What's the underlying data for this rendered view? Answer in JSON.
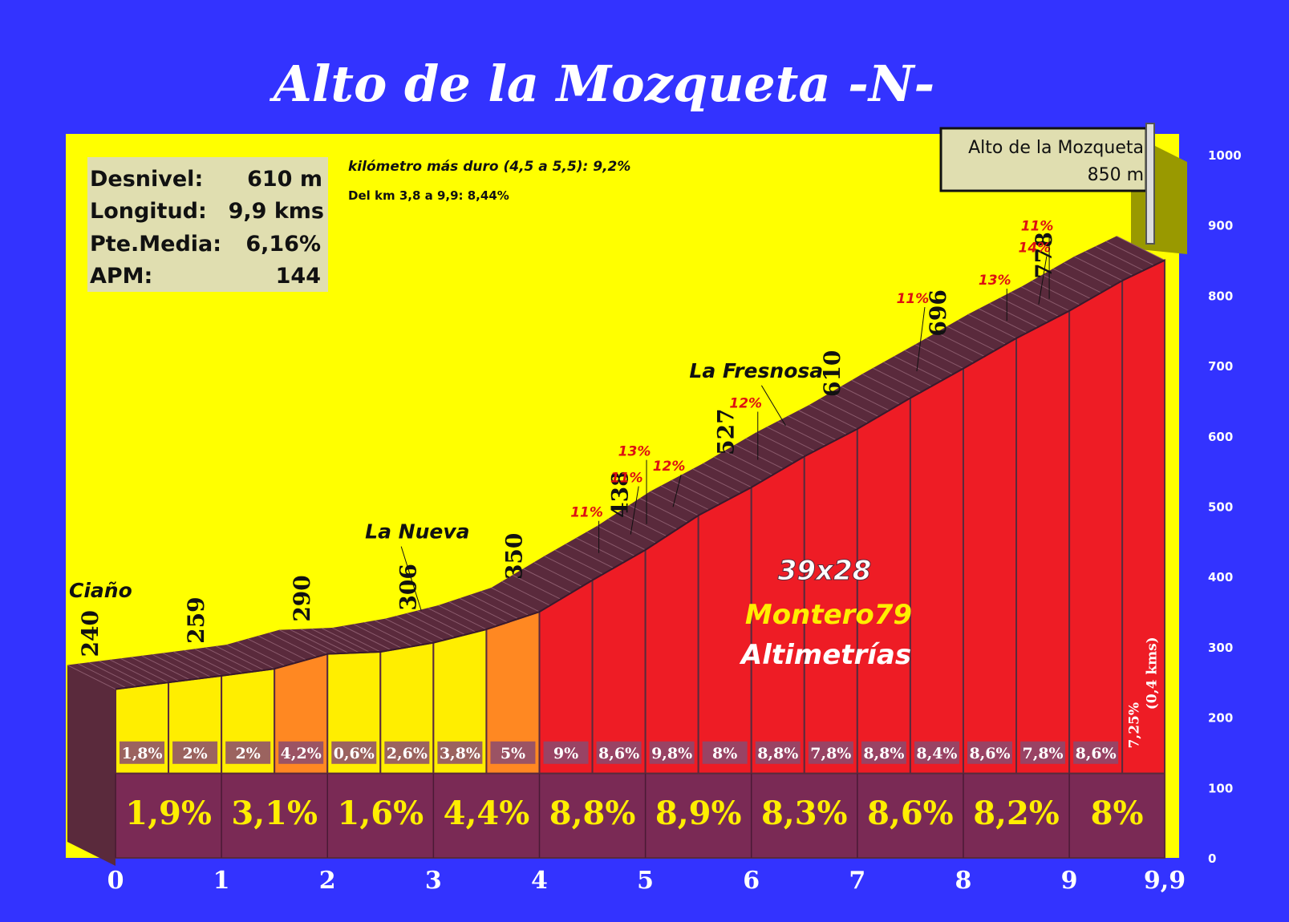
{
  "chart_data": {
    "type": "area",
    "title": "Alto de la Mozqueta -N-",
    "x_ticks": [
      "0",
      "1",
      "2",
      "3",
      "4",
      "5",
      "6",
      "7",
      "8",
      "9",
      "9,9"
    ],
    "xlim": [
      0,
      9.9
    ],
    "y_ticks": [
      "0",
      "100",
      "200",
      "300",
      "400",
      "500",
      "600",
      "700",
      "800",
      "900",
      "1000"
    ],
    "ylim": [
      0,
      1000
    ],
    "profile": [
      {
        "x": 0,
        "y": 240
      },
      {
        "x": 0.5,
        "y": 249.5
      },
      {
        "x": 1,
        "y": 259
      },
      {
        "x": 1.5,
        "y": 269
      },
      {
        "x": 2,
        "y": 290
      },
      {
        "x": 2.5,
        "y": 293
      },
      {
        "x": 3,
        "y": 306
      },
      {
        "x": 3.5,
        "y": 325
      },
      {
        "x": 4,
        "y": 350
      },
      {
        "x": 4.5,
        "y": 395
      },
      {
        "x": 5,
        "y": 438
      },
      {
        "x": 5.5,
        "y": 487
      },
      {
        "x": 6,
        "y": 527
      },
      {
        "x": 6.5,
        "y": 571
      },
      {
        "x": 7,
        "y": 610
      },
      {
        "x": 7.5,
        "y": 654
      },
      {
        "x": 8,
        "y": 696
      },
      {
        "x": 8.5,
        "y": 739
      },
      {
        "x": 9,
        "y": 778
      },
      {
        "x": 9.5,
        "y": 821
      },
      {
        "x": 9.9,
        "y": 850
      }
    ],
    "segments": [
      {
        "start": 0,
        "end": 0.5,
        "label": "1,8%",
        "color": "#ffee00"
      },
      {
        "start": 0.5,
        "end": 1,
        "label": "2%",
        "color": "#ffee00"
      },
      {
        "start": 1,
        "end": 1.5,
        "label": "2%",
        "color": "#ffee00"
      },
      {
        "start": 1.5,
        "end": 2,
        "label": "4,2%",
        "color": "#ff8822"
      },
      {
        "start": 2,
        "end": 2.5,
        "label": "0,6%",
        "color": "#ffee00"
      },
      {
        "start": 2.5,
        "end": 3,
        "label": "2,6%",
        "color": "#ffee00"
      },
      {
        "start": 3,
        "end": 3.5,
        "label": "3,8%",
        "color": "#ffee00"
      },
      {
        "start": 3.5,
        "end": 4,
        "label": "5%",
        "color": "#ff8822"
      },
      {
        "start": 4,
        "end": 4.5,
        "label": "9%",
        "color": "#ee1c25"
      },
      {
        "start": 4.5,
        "end": 5,
        "label": "8,6%",
        "color": "#ee1c25"
      },
      {
        "start": 5,
        "end": 5.5,
        "label": "9,8%",
        "color": "#ee1c25"
      },
      {
        "start": 5.5,
        "end": 6,
        "label": "8%",
        "color": "#ee1c25"
      },
      {
        "start": 6,
        "end": 6.5,
        "label": "8,8%",
        "color": "#ee1c25"
      },
      {
        "start": 6.5,
        "end": 7,
        "label": "7,8%",
        "color": "#ee1c25"
      },
      {
        "start": 7,
        "end": 7.5,
        "label": "8,8%",
        "color": "#ee1c25"
      },
      {
        "start": 7.5,
        "end": 8,
        "label": "8,4%",
        "color": "#ee1c25"
      },
      {
        "start": 8,
        "end": 8.5,
        "label": "8,6%",
        "color": "#ee1c25"
      },
      {
        "start": 8.5,
        "end": 9,
        "label": "7,8%",
        "color": "#ee1c25"
      },
      {
        "start": 9,
        "end": 9.5,
        "label": "8,6%",
        "color": "#ee1c25"
      },
      {
        "start": 9.5,
        "end": 9.9,
        "label": "7,25%",
        "label2": "(0,4 kms)",
        "color": "#ee1c25"
      }
    ],
    "km_gradients": [
      {
        "start": 0,
        "end": 1,
        "label": "1,9%"
      },
      {
        "start": 1,
        "end": 2,
        "label": "3,1%"
      },
      {
        "start": 2,
        "end": 3,
        "label": "1,6%"
      },
      {
        "start": 3,
        "end": 4,
        "label": "4,4%"
      },
      {
        "start": 4,
        "end": 5,
        "label": "8,8%"
      },
      {
        "start": 5,
        "end": 6,
        "label": "8,9%"
      },
      {
        "start": 6,
        "end": 7,
        "label": "8,3%"
      },
      {
        "start": 7,
        "end": 8,
        "label": "8,6%"
      },
      {
        "start": 8,
        "end": 9,
        "label": "8,2%"
      },
      {
        "start": 9,
        "end": 9.9,
        "label": "8%"
      }
    ],
    "altitude_labels": [
      {
        "x": 0,
        "y": 240,
        "label": "240"
      },
      {
        "x": 1,
        "y": 259,
        "label": "259"
      },
      {
        "x": 2,
        "y": 290,
        "label": "290"
      },
      {
        "x": 3,
        "y": 306,
        "label": "306"
      },
      {
        "x": 4,
        "y": 350,
        "label": "350"
      },
      {
        "x": 5,
        "y": 438,
        "label": "438"
      },
      {
        "x": 6,
        "y": 527,
        "label": "527"
      },
      {
        "x": 7,
        "y": 610,
        "label": "610"
      },
      {
        "x": 8,
        "y": 696,
        "label": "696"
      },
      {
        "x": 9,
        "y": 778,
        "label": "778"
      }
    ],
    "steep_labels": [
      {
        "x": 4.75,
        "label": "11%"
      },
      {
        "x": 5.05,
        "label": "11%"
      },
      {
        "x": 5.2,
        "label": "13%"
      },
      {
        "x": 5.45,
        "label": "12%"
      },
      {
        "x": 6.25,
        "label": "12%"
      },
      {
        "x": 7.75,
        "label": "11%"
      },
      {
        "x": 8.6,
        "label": "13%"
      },
      {
        "x": 8.9,
        "label": "14%"
      },
      {
        "x": 9.0,
        "label": "11%"
      }
    ],
    "place_labels": [
      {
        "x": 0,
        "label": "Ciaño"
      },
      {
        "x": 3.15,
        "label": "La Nueva"
      },
      {
        "x": 6.55,
        "label": "La Fresnosa"
      }
    ],
    "summit": {
      "name": "Alto de la Mozqueta",
      "altitude": "850 m"
    }
  },
  "stats": [
    {
      "label": "Desnivel:",
      "value": "610 m"
    },
    {
      "label": "Longitud:",
      "value": "9,9 kms"
    },
    {
      "label": "Pte.Media:",
      "value": "6,16%"
    },
    {
      "label": "APM:",
      "value": "144"
    }
  ],
  "notes": {
    "hardest_km": "kilómetro más duro (4,5 a 5,5):  9,2%",
    "stretch": "Del km 3,8 a 9,9:  8,44%"
  },
  "credits": {
    "gear": "39x28",
    "author": "Montero79",
    "brand": "Altimetrías"
  },
  "colors": {
    "background": "#3333ff",
    "sky": "#ffff00",
    "easy": "#ffee00",
    "moderate": "#ff8822",
    "hard": "#ee1c25",
    "road": "#5a2a3c",
    "base": "#7a2a55",
    "km_text": "#ffee00"
  }
}
